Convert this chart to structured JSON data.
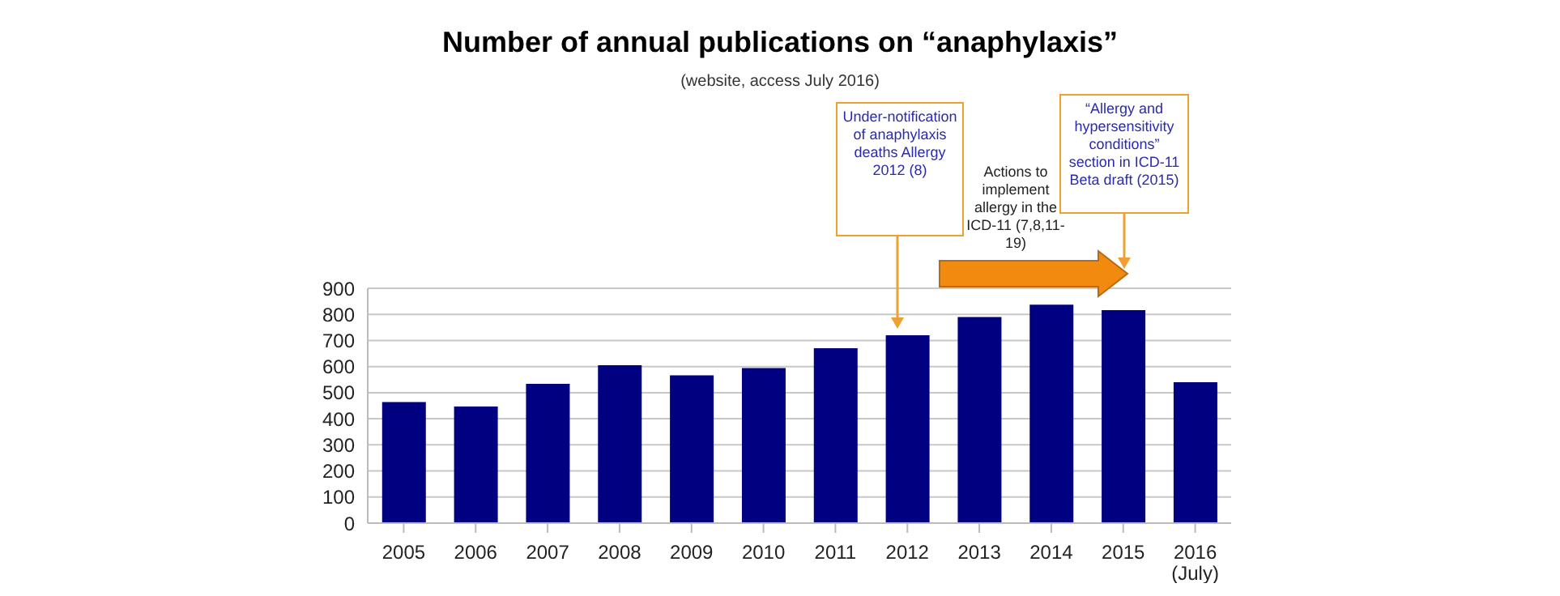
{
  "chart_data": {
    "type": "bar",
    "title": "Number of annual publications on “anaphylaxis”",
    "subtitle": "(website, access July 2016)",
    "categories": [
      "2005",
      "2006",
      "2007",
      "2008",
      "2009",
      "2010",
      "2011",
      "2012",
      "2013",
      "2014",
      "2015",
      "2016 (July)"
    ],
    "values": [
      464,
      447,
      534,
      605,
      566,
      594,
      670,
      720,
      790,
      837,
      816,
      540
    ],
    "color": "#000080",
    "ylim": [
      0,
      900
    ],
    "yticks": [
      0,
      100,
      200,
      300,
      400,
      500,
      600,
      700,
      800,
      900
    ],
    "grid": "y",
    "annotations": [
      "Under-notification of anaphylaxis deaths Allergy 2012 (8)",
      "Actions to implement allergy in the ICD-11 (7,8,11-19)",
      "“Allergy and hypersensitivity conditions” section in ICD-11 Beta draft (2015)"
    ]
  }
}
